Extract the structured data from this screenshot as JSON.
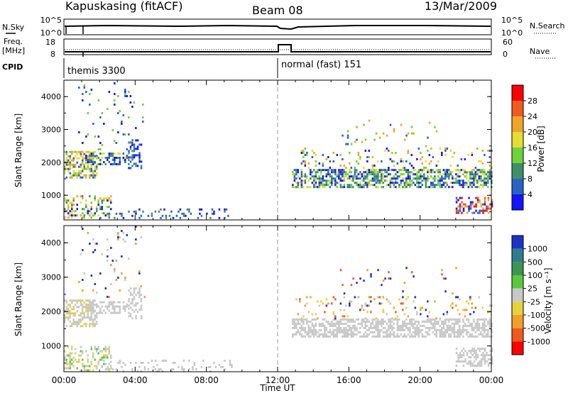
{
  "header": {
    "station": "Kapuskasing (fitACF)",
    "beam": "Beam 08",
    "date": "13/Mar/2009"
  },
  "noise_panel": {
    "left_label": "N.Sky",
    "right_label": "N.Search",
    "left_ticks": [
      "10^5",
      "10^0"
    ],
    "right_ticks": [
      "10^5",
      "10^0"
    ]
  },
  "freq_panel": {
    "label_line1": "Freq.",
    "label_line2": "[MHz]",
    "left_ticks": [
      "18",
      "8"
    ],
    "right_ticks": [
      "60",
      "0"
    ],
    "right_label": "Nave"
  },
  "cpid_panel": {
    "label": "CPID",
    "modes": [
      "themis 3300",
      "normal (fast) 151"
    ]
  },
  "chart_data": [
    {
      "type": "heatmap",
      "name": "power",
      "ylabel": "Slant Range [km]",
      "xlabel": "",
      "yticks": [
        "1000",
        "2000",
        "3000",
        "4000"
      ],
      "ylim": [
        250,
        4500
      ],
      "x_range_hours": [
        0,
        24
      ],
      "colorbar_label": "Power [dB]",
      "colorbar_ticks": [
        "4",
        "8",
        "12",
        "16",
        "20",
        "24",
        "28"
      ],
      "colors": [
        "#1414ff",
        "#2a62c4",
        "#3f8f6a",
        "#6ed23c",
        "#e6dc32",
        "#f0a528",
        "#f05a1e",
        "#ff0000"
      ],
      "regions": [
        {
          "h0": 0.0,
          "h1": 1.8,
          "r0": 1550,
          "r1": 2350,
          "density": 0.55,
          "colors": [
            1,
            3,
            4,
            5
          ]
        },
        {
          "h0": 1.2,
          "h1": 3.6,
          "r0": 1950,
          "r1": 2300,
          "density": 0.45,
          "colors": [
            0,
            1,
            2,
            4
          ]
        },
        {
          "h0": 3.6,
          "h1": 4.3,
          "r0": 1800,
          "r1": 2700,
          "density": 0.4,
          "colors": [
            0,
            1,
            2
          ]
        },
        {
          "h0": 0.0,
          "h1": 2.6,
          "r0": 300,
          "r1": 1000,
          "density": 0.35,
          "colors": [
            0,
            2,
            3,
            4,
            5
          ]
        },
        {
          "h0": 2.0,
          "h1": 9.5,
          "r0": 280,
          "r1": 600,
          "density": 0.15,
          "colors": [
            0,
            1,
            2
          ]
        },
        {
          "h0": 0.8,
          "h1": 4.5,
          "r0": 2400,
          "r1": 4500,
          "density": 0.04,
          "colors": [
            0,
            1,
            3
          ]
        },
        {
          "h0": 12.8,
          "h1": 24.0,
          "r0": 1250,
          "r1": 1800,
          "density": 0.6,
          "colors": [
            0,
            1,
            2,
            3,
            4
          ]
        },
        {
          "h0": 13.0,
          "h1": 24.0,
          "r0": 1800,
          "r1": 2450,
          "density": 0.12,
          "colors": [
            0,
            1,
            3,
            4,
            5
          ]
        },
        {
          "h0": 22.0,
          "h1": 24.0,
          "r0": 450,
          "r1": 950,
          "density": 0.5,
          "colors": [
            0,
            1,
            5,
            6,
            7
          ]
        },
        {
          "h0": 15.5,
          "h1": 22.0,
          "r0": 2500,
          "r1": 3300,
          "density": 0.03,
          "colors": [
            1,
            3,
            5
          ]
        }
      ]
    },
    {
      "type": "heatmap",
      "name": "velocity",
      "ylabel": "Slant Range [km]",
      "xlabel": "Time UT",
      "yticks": [
        "1000",
        "2000",
        "3000",
        "4000"
      ],
      "ylim": [
        250,
        4500
      ],
      "x_range_hours": [
        0,
        24
      ],
      "xticks": [
        "00:00",
        "04:00",
        "08:00",
        "12:00",
        "16:00",
        "20:00",
        "00:00"
      ],
      "colorbar_label": "Velocity [m s⁻¹]",
      "colorbar_ticks": [
        "1000",
        "500",
        "100",
        "25",
        "-25",
        "-100",
        "-500",
        "-1000"
      ],
      "colors": [
        "#1e32c8",
        "#2f7d8c",
        "#3c9650",
        "#5ac83c",
        "#c8c8c8",
        "#e6d23c",
        "#f0a028",
        "#f05a1e",
        "#ff0000"
      ],
      "regions": [
        {
          "h0": 0.0,
          "h1": 1.8,
          "r0": 1550,
          "r1": 2350,
          "density": 0.55,
          "colors": [
            4,
            4,
            4,
            5
          ]
        },
        {
          "h0": 1.2,
          "h1": 3.6,
          "r0": 1950,
          "r1": 2300,
          "density": 0.45,
          "colors": [
            4,
            4,
            4
          ]
        },
        {
          "h0": 3.6,
          "h1": 4.3,
          "r0": 1800,
          "r1": 2700,
          "density": 0.4,
          "colors": [
            4,
            4
          ]
        },
        {
          "h0": 0.0,
          "h1": 2.6,
          "r0": 300,
          "r1": 1000,
          "density": 0.35,
          "colors": [
            4,
            4,
            3,
            5
          ]
        },
        {
          "h0": 2.0,
          "h1": 9.5,
          "r0": 280,
          "r1": 600,
          "density": 0.15,
          "colors": [
            4
          ]
        },
        {
          "h0": 0.8,
          "h1": 4.5,
          "r0": 2400,
          "r1": 4500,
          "density": 0.04,
          "colors": [
            4,
            6,
            0
          ]
        },
        {
          "h0": 12.8,
          "h1": 24.0,
          "r0": 1250,
          "r1": 1800,
          "density": 0.6,
          "colors": [
            4,
            4,
            4,
            4
          ]
        },
        {
          "h0": 13.0,
          "h1": 24.0,
          "r0": 1800,
          "r1": 2450,
          "density": 0.12,
          "colors": [
            4,
            6,
            7,
            0,
            5
          ]
        },
        {
          "h0": 22.0,
          "h1": 24.0,
          "r0": 450,
          "r1": 950,
          "density": 0.5,
          "colors": [
            4,
            4
          ]
        },
        {
          "h0": 15.5,
          "h1": 22.0,
          "r0": 2500,
          "r1": 3300,
          "density": 0.03,
          "colors": [
            6,
            7,
            0
          ]
        }
      ]
    }
  ]
}
